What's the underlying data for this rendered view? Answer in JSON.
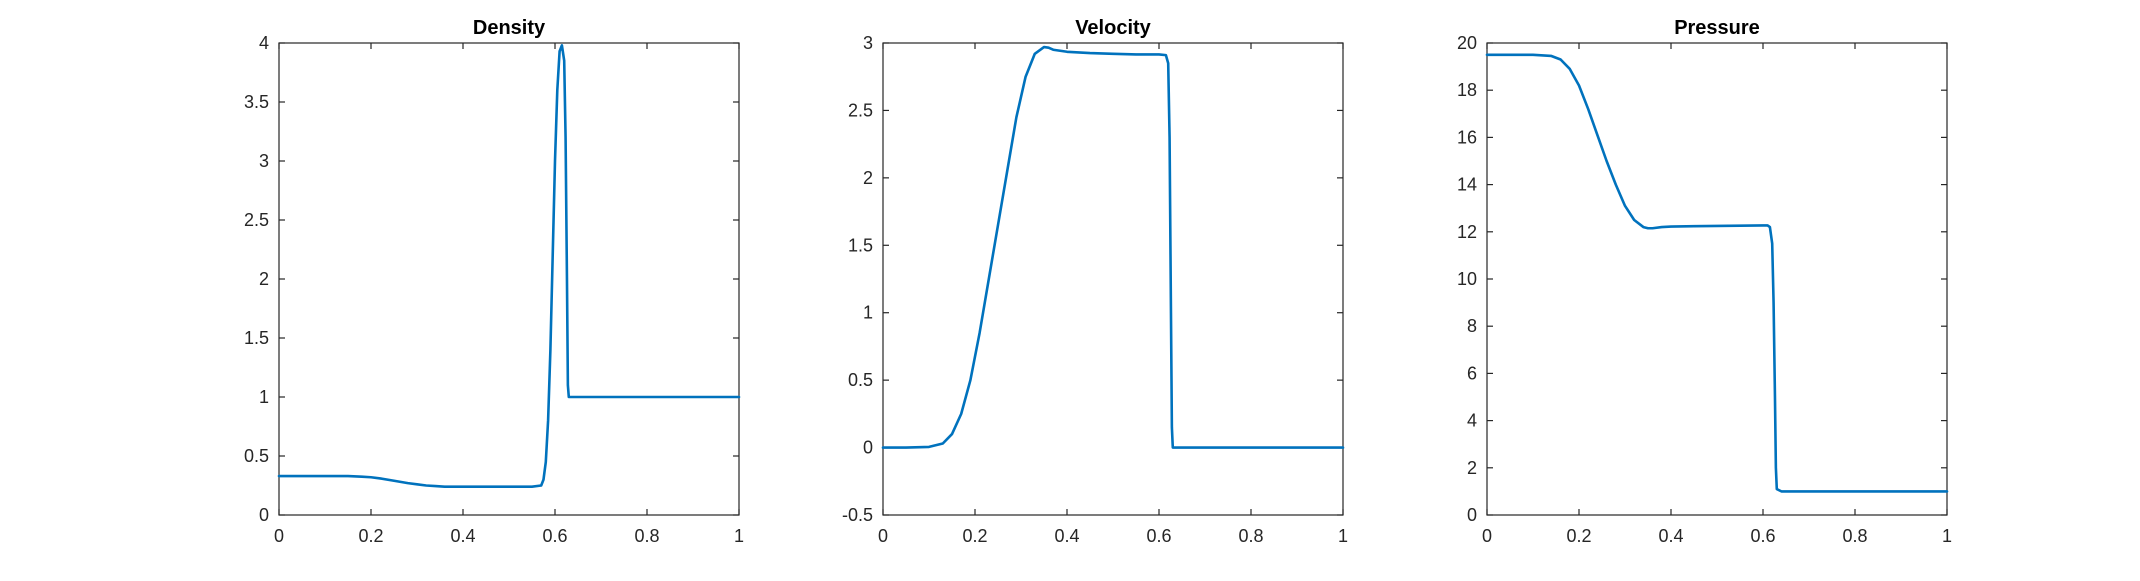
{
  "chart_data": [
    {
      "type": "line",
      "title": "Density",
      "xlabel": "",
      "ylabel": "",
      "xlim": [
        0,
        1
      ],
      "ylim": [
        0,
        4
      ],
      "xticks": [
        "0",
        "0.2",
        "0.4",
        "0.6",
        "0.8",
        "1"
      ],
      "yticks": [
        "0",
        "0.5",
        "1",
        "1.5",
        "2",
        "2.5",
        "3",
        "3.5",
        "4"
      ],
      "grid": false,
      "color": "#0072BD",
      "series": [
        {
          "x": [
            0,
            0.05,
            0.1,
            0.15,
            0.18,
            0.2,
            0.22,
            0.25,
            0.28,
            0.3,
            0.32,
            0.34,
            0.36,
            0.4,
            0.45,
            0.5,
            0.55,
            0.57,
            0.575,
            0.58,
            0.585,
            0.59,
            0.595,
            0.6,
            0.605,
            0.61,
            0.615,
            0.62,
            0.623,
            0.626,
            0.628,
            0.63,
            0.64,
            0.7,
            0.8,
            0.9,
            1
          ],
          "y": [
            0.33,
            0.33,
            0.33,
            0.33,
            0.325,
            0.32,
            0.31,
            0.29,
            0.27,
            0.26,
            0.25,
            0.245,
            0.24,
            0.24,
            0.24,
            0.24,
            0.24,
            0.25,
            0.3,
            0.45,
            0.8,
            1.4,
            2.2,
            3.0,
            3.6,
            3.93,
            3.98,
            3.85,
            3.2,
            2.0,
            1.1,
            1.0,
            1.0,
            1.0,
            1.0,
            1.0,
            1.0
          ]
        }
      ]
    },
    {
      "type": "line",
      "title": "Velocity",
      "xlabel": "",
      "ylabel": "",
      "xlim": [
        0,
        1
      ],
      "ylim": [
        -0.5,
        3
      ],
      "xticks": [
        "0",
        "0.2",
        "0.4",
        "0.6",
        "0.8",
        "1"
      ],
      "yticks": [
        "-0.5",
        "0",
        "0.5",
        "1",
        "1.5",
        "2",
        "2.5",
        "3"
      ],
      "grid": false,
      "color": "#0072BD",
      "series": [
        {
          "x": [
            0,
            0.05,
            0.1,
            0.13,
            0.15,
            0.17,
            0.19,
            0.21,
            0.23,
            0.25,
            0.27,
            0.29,
            0.31,
            0.33,
            0.35,
            0.36,
            0.37,
            0.4,
            0.45,
            0.5,
            0.55,
            0.6,
            0.615,
            0.62,
            0.623,
            0.626,
            0.628,
            0.63,
            0.635,
            0.7,
            0.8,
            0.9,
            1
          ],
          "y": [
            0.0,
            0.0,
            0.005,
            0.03,
            0.1,
            0.25,
            0.5,
            0.85,
            1.25,
            1.65,
            2.05,
            2.45,
            2.75,
            2.92,
            2.97,
            2.965,
            2.95,
            2.935,
            2.925,
            2.92,
            2.915,
            2.915,
            2.91,
            2.85,
            2.3,
            1.0,
            0.15,
            0.0,
            0.0,
            0.0,
            0.0,
            0.0,
            0.0
          ]
        }
      ]
    },
    {
      "type": "line",
      "title": "Pressure",
      "xlabel": "",
      "ylabel": "",
      "xlim": [
        0,
        1
      ],
      "ylim": [
        0,
        20
      ],
      "xticks": [
        "0",
        "0.2",
        "0.4",
        "0.6",
        "0.8",
        "1"
      ],
      "yticks": [
        "0",
        "2",
        "4",
        "6",
        "8",
        "10",
        "12",
        "14",
        "16",
        "18",
        "20"
      ],
      "grid": false,
      "color": "#0072BD",
      "series": [
        {
          "x": [
            0,
            0.05,
            0.1,
            0.14,
            0.16,
            0.18,
            0.2,
            0.22,
            0.24,
            0.26,
            0.28,
            0.3,
            0.32,
            0.34,
            0.35,
            0.36,
            0.38,
            0.4,
            0.45,
            0.5,
            0.55,
            0.6,
            0.61,
            0.615,
            0.62,
            0.623,
            0.626,
            0.628,
            0.63,
            0.64,
            0.7,
            0.8,
            0.9,
            1
          ],
          "y": [
            19.5,
            19.5,
            19.5,
            19.45,
            19.3,
            18.9,
            18.2,
            17.2,
            16.1,
            15.0,
            14.0,
            13.1,
            12.5,
            12.2,
            12.15,
            12.15,
            12.2,
            12.22,
            12.24,
            12.25,
            12.26,
            12.27,
            12.27,
            12.2,
            11.5,
            9.0,
            5.0,
            2.0,
            1.1,
            1.0,
            1.0,
            1.0,
            1.0,
            1.0
          ]
        }
      ]
    }
  ]
}
